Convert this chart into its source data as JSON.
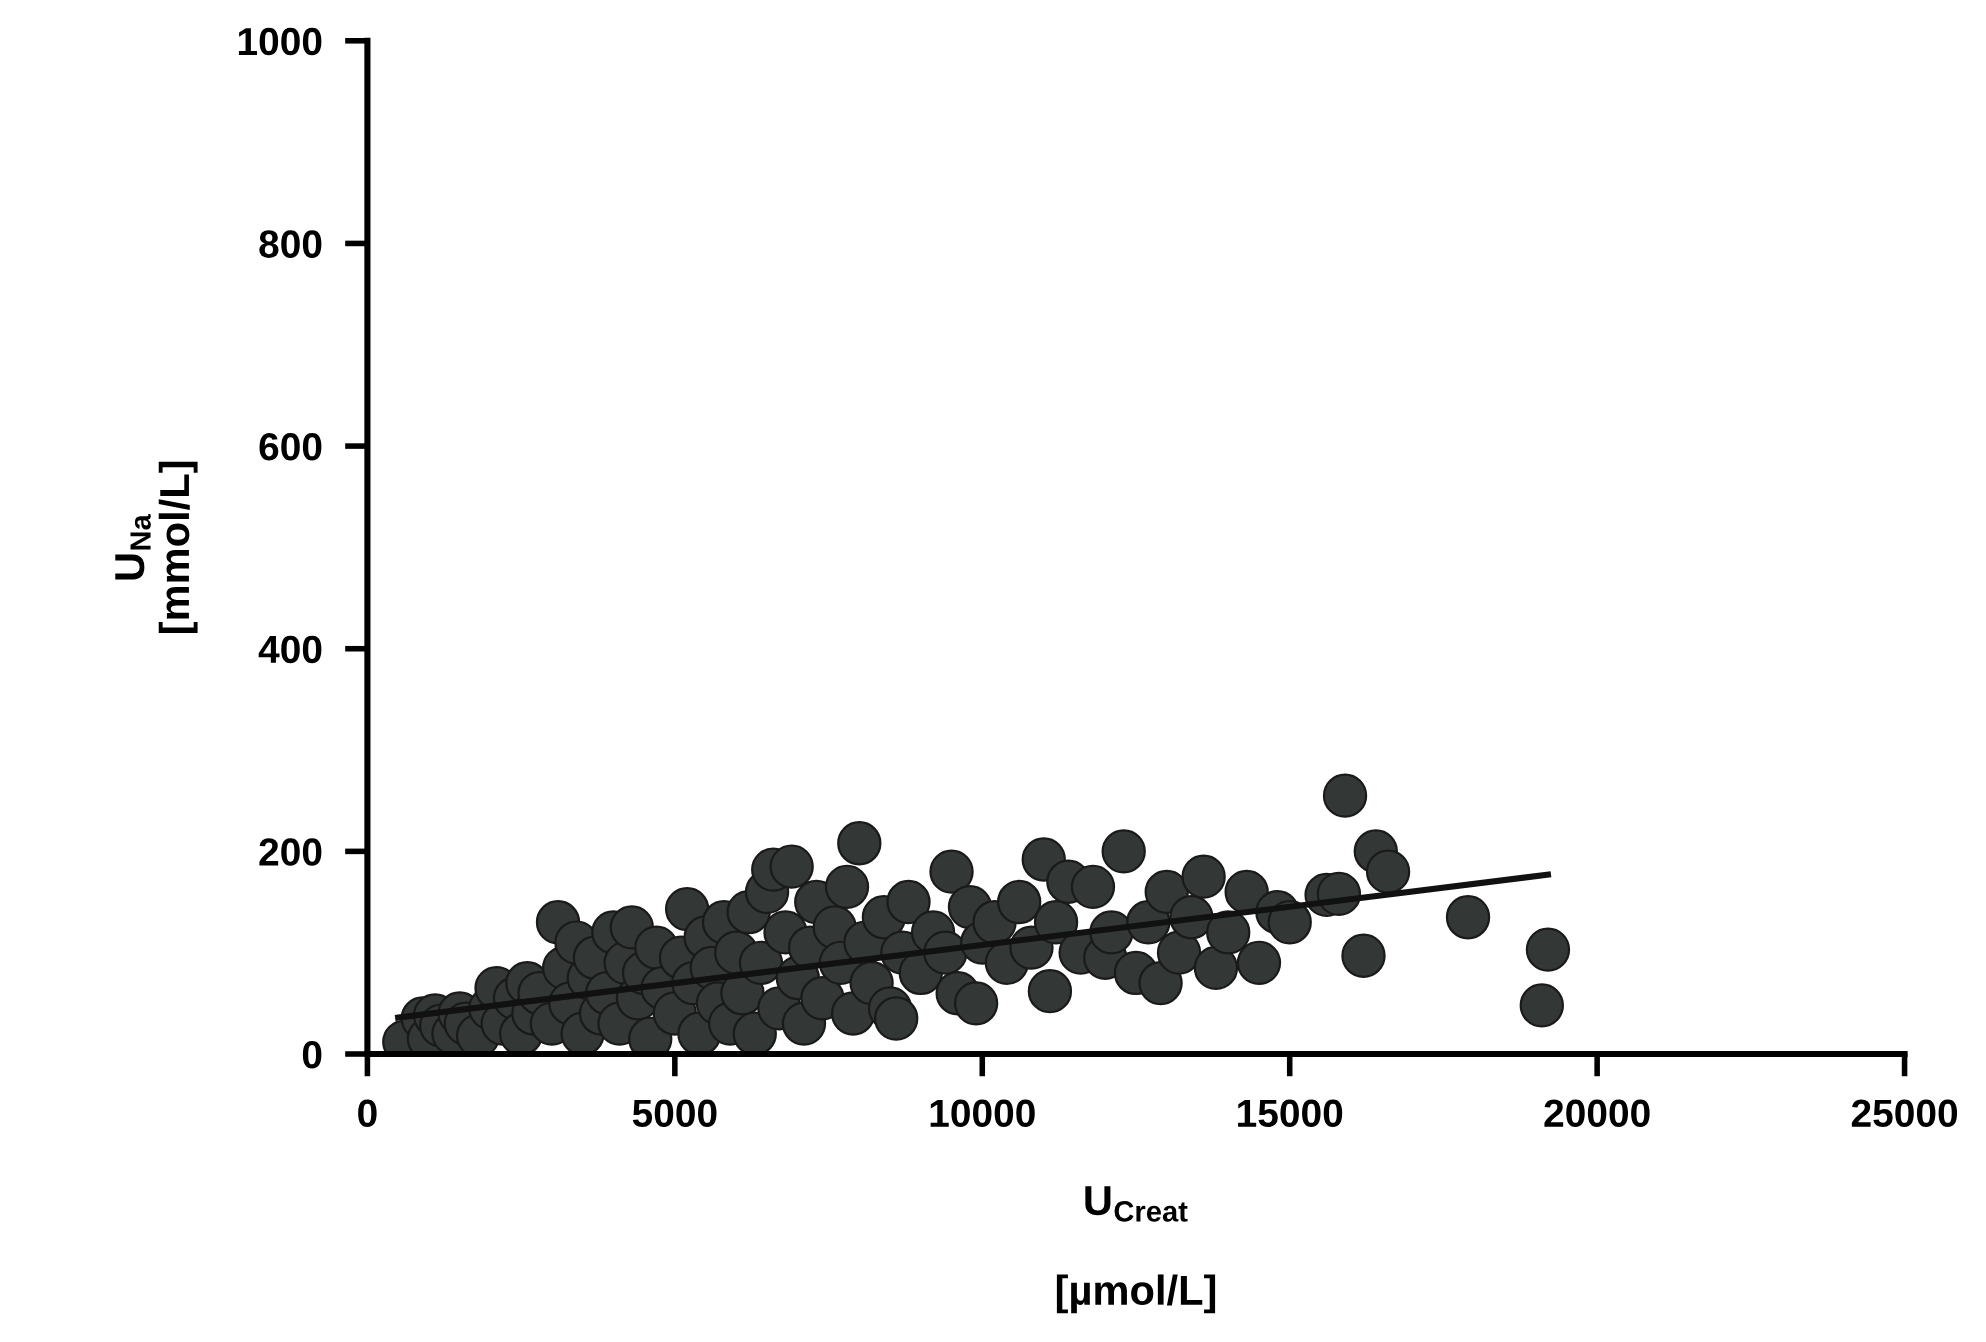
{
  "chart_data": {
    "type": "scatter",
    "xlabel": "U$_{Creat}$\n\n[µmol/L]",
    "ylabel": "U$_{Na}$\n[mmol/L]",
    "xlim": [
      0,
      25000
    ],
    "xticks": [
      0,
      5000,
      10000,
      15000,
      20000,
      25000
    ],
    "ylim": [
      0,
      1000
    ],
    "yticks": [
      0,
      200,
      400,
      600,
      800,
      1000
    ],
    "grid": false,
    "legend": false,
    "series": [
      {
        "marker": "circle",
        "color": "#333836",
        "x": [
          600,
          900,
          1000,
          1100,
          1200,
          1400,
          1500,
          1600,
          1800,
          2000,
          2100,
          2200,
          2400,
          2500,
          2600,
          2700,
          2800,
          3000,
          3100,
          3200,
          3300,
          3400,
          3500,
          3600,
          3700,
          3800,
          3900,
          4000,
          4100,
          4200,
          4300,
          4400,
          4500,
          4600,
          4700,
          4800,
          5000,
          5100,
          5200,
          5300,
          5400,
          5500,
          5600,
          5700,
          5800,
          5900,
          6000,
          6100,
          6200,
          6300,
          6400,
          6500,
          6600,
          6700,
          6800,
          6900,
          7000,
          7100,
          7200,
          7300,
          7400,
          7600,
          7700,
          7800,
          7900,
          8000,
          8100,
          8200,
          8400,
          8500,
          8600,
          8700,
          8800,
          9000,
          9200,
          9400,
          9500,
          9600,
          9800,
          9900,
          10000,
          10200,
          10400,
          10600,
          10800,
          11000,
          11100,
          11200,
          11400,
          11600,
          11800,
          12000,
          12100,
          12300,
          12500,
          12700,
          12900,
          13000,
          13200,
          13400,
          13600,
          13800,
          14000,
          14300,
          14500,
          14800,
          15000,
          15600,
          15800,
          15900,
          16200,
          16400,
          16600,
          17900,
          19100,
          19200
        ],
        "values": [
          12,
          35,
          15,
          38,
          28,
          20,
          40,
          30,
          18,
          45,
          65,
          30,
          55,
          20,
          70,
          40,
          60,
          30,
          130,
          85,
          50,
          110,
          20,
          75,
          95,
          40,
          60,
          120,
          30,
          90,
          125,
          55,
          80,
          15,
          105,
          65,
          40,
          95,
          143,
          70,
          20,
          115,
          85,
          50,
          130,
          30,
          100,
          60,
          140,
          20,
          90,
          160,
          182,
          45,
          120,
          185,
          75,
          30,
          105,
          150,
          55,
          125,
          90,
          165,
          40,
          208,
          110,
          70,
          135,
          45,
          35,
          100,
          150,
          80,
          120,
          100,
          180,
          60,
          145,
          50,
          110,
          130,
          90,
          150,
          105,
          192,
          62,
          130,
          170,
          100,
          165,
          95,
          120,
          200,
          80,
          130,
          70,
          160,
          100,
          135,
          175,
          85,
          120,
          160,
          90,
          140,
          130,
          157,
          158,
          255,
          97,
          200,
          180,
          135,
          48,
          103
        ]
      },
      {
        "type": "line",
        "marker": "none",
        "color": "#111111",
        "x": [
          500,
          19200
        ],
        "values": [
          36,
          177
        ]
      }
    ]
  }
}
